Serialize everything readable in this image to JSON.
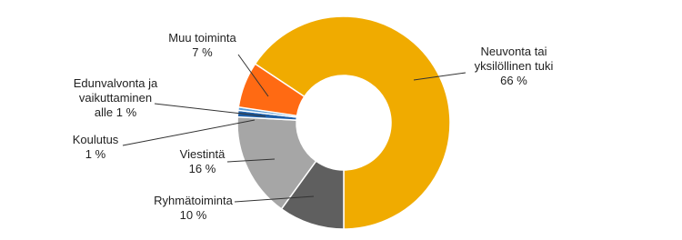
{
  "chart_data": {
    "type": "donut",
    "categories": [
      "Neuvonta tai yksilöllinen tuki",
      "Ryhmätoiminta",
      "Viestintä",
      "Koulutus",
      "Edunvalvonta ja vaikuttaminen",
      "Muu toiminta"
    ],
    "values": [
      66,
      10,
      16,
      1,
      0.5,
      7
    ],
    "value_labels": [
      "66 %",
      "10 %",
      "16 %",
      "1 %",
      "alle 1 %",
      "7 %"
    ],
    "colors": [
      "#f0ab00",
      "#5f5f5f",
      "#a6a6a6",
      "#1f5fa8",
      "#5b9bd5",
      "#ff6a13"
    ]
  }
}
